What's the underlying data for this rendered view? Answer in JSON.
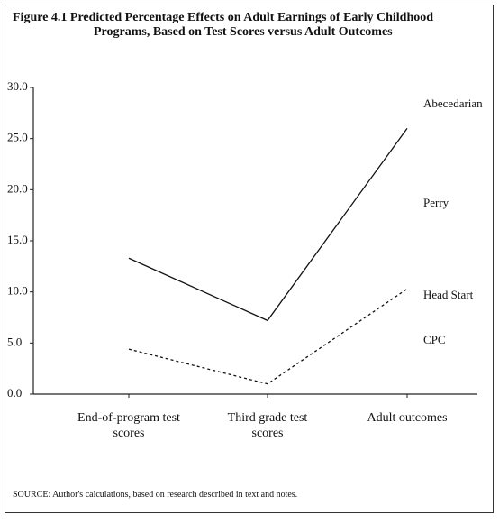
{
  "chart_data": {
    "type": "line",
    "title": "Figure 4.1  Predicted Percentage Effects on Adult Earnings of Early Childhood Programs, Based on Test Scores versus Adult Outcomes",
    "categories": [
      "End-of-program test scores",
      "Third grade test scores",
      "Adult outcomes"
    ],
    "series": [
      {
        "color": "#111111",
        "dash": "solid",
        "values": [
          13.3,
          7.2,
          26.0
        ]
      },
      {
        "color": "#111111",
        "dash": "dotted",
        "values": [
          4.4,
          1.0,
          10.3
        ]
      }
    ],
    "annotations": [
      "Abecedarian",
      "Perry",
      "Head Start",
      "CPC"
    ],
    "ylim": [
      0,
      30
    ],
    "yticks": [
      {
        "value": 0,
        "label": "0.0"
      },
      {
        "value": 5,
        "label": "5.0"
      },
      {
        "value": 10,
        "label": "10.0"
      },
      {
        "value": 15,
        "label": "15.0"
      },
      {
        "value": 20,
        "label": "20.0"
      },
      {
        "value": 25,
        "label": "25.0"
      },
      {
        "value": 30,
        "label": "30.0"
      }
    ],
    "source": "SOURCE: Author's calculations, based on research described in text and notes."
  }
}
